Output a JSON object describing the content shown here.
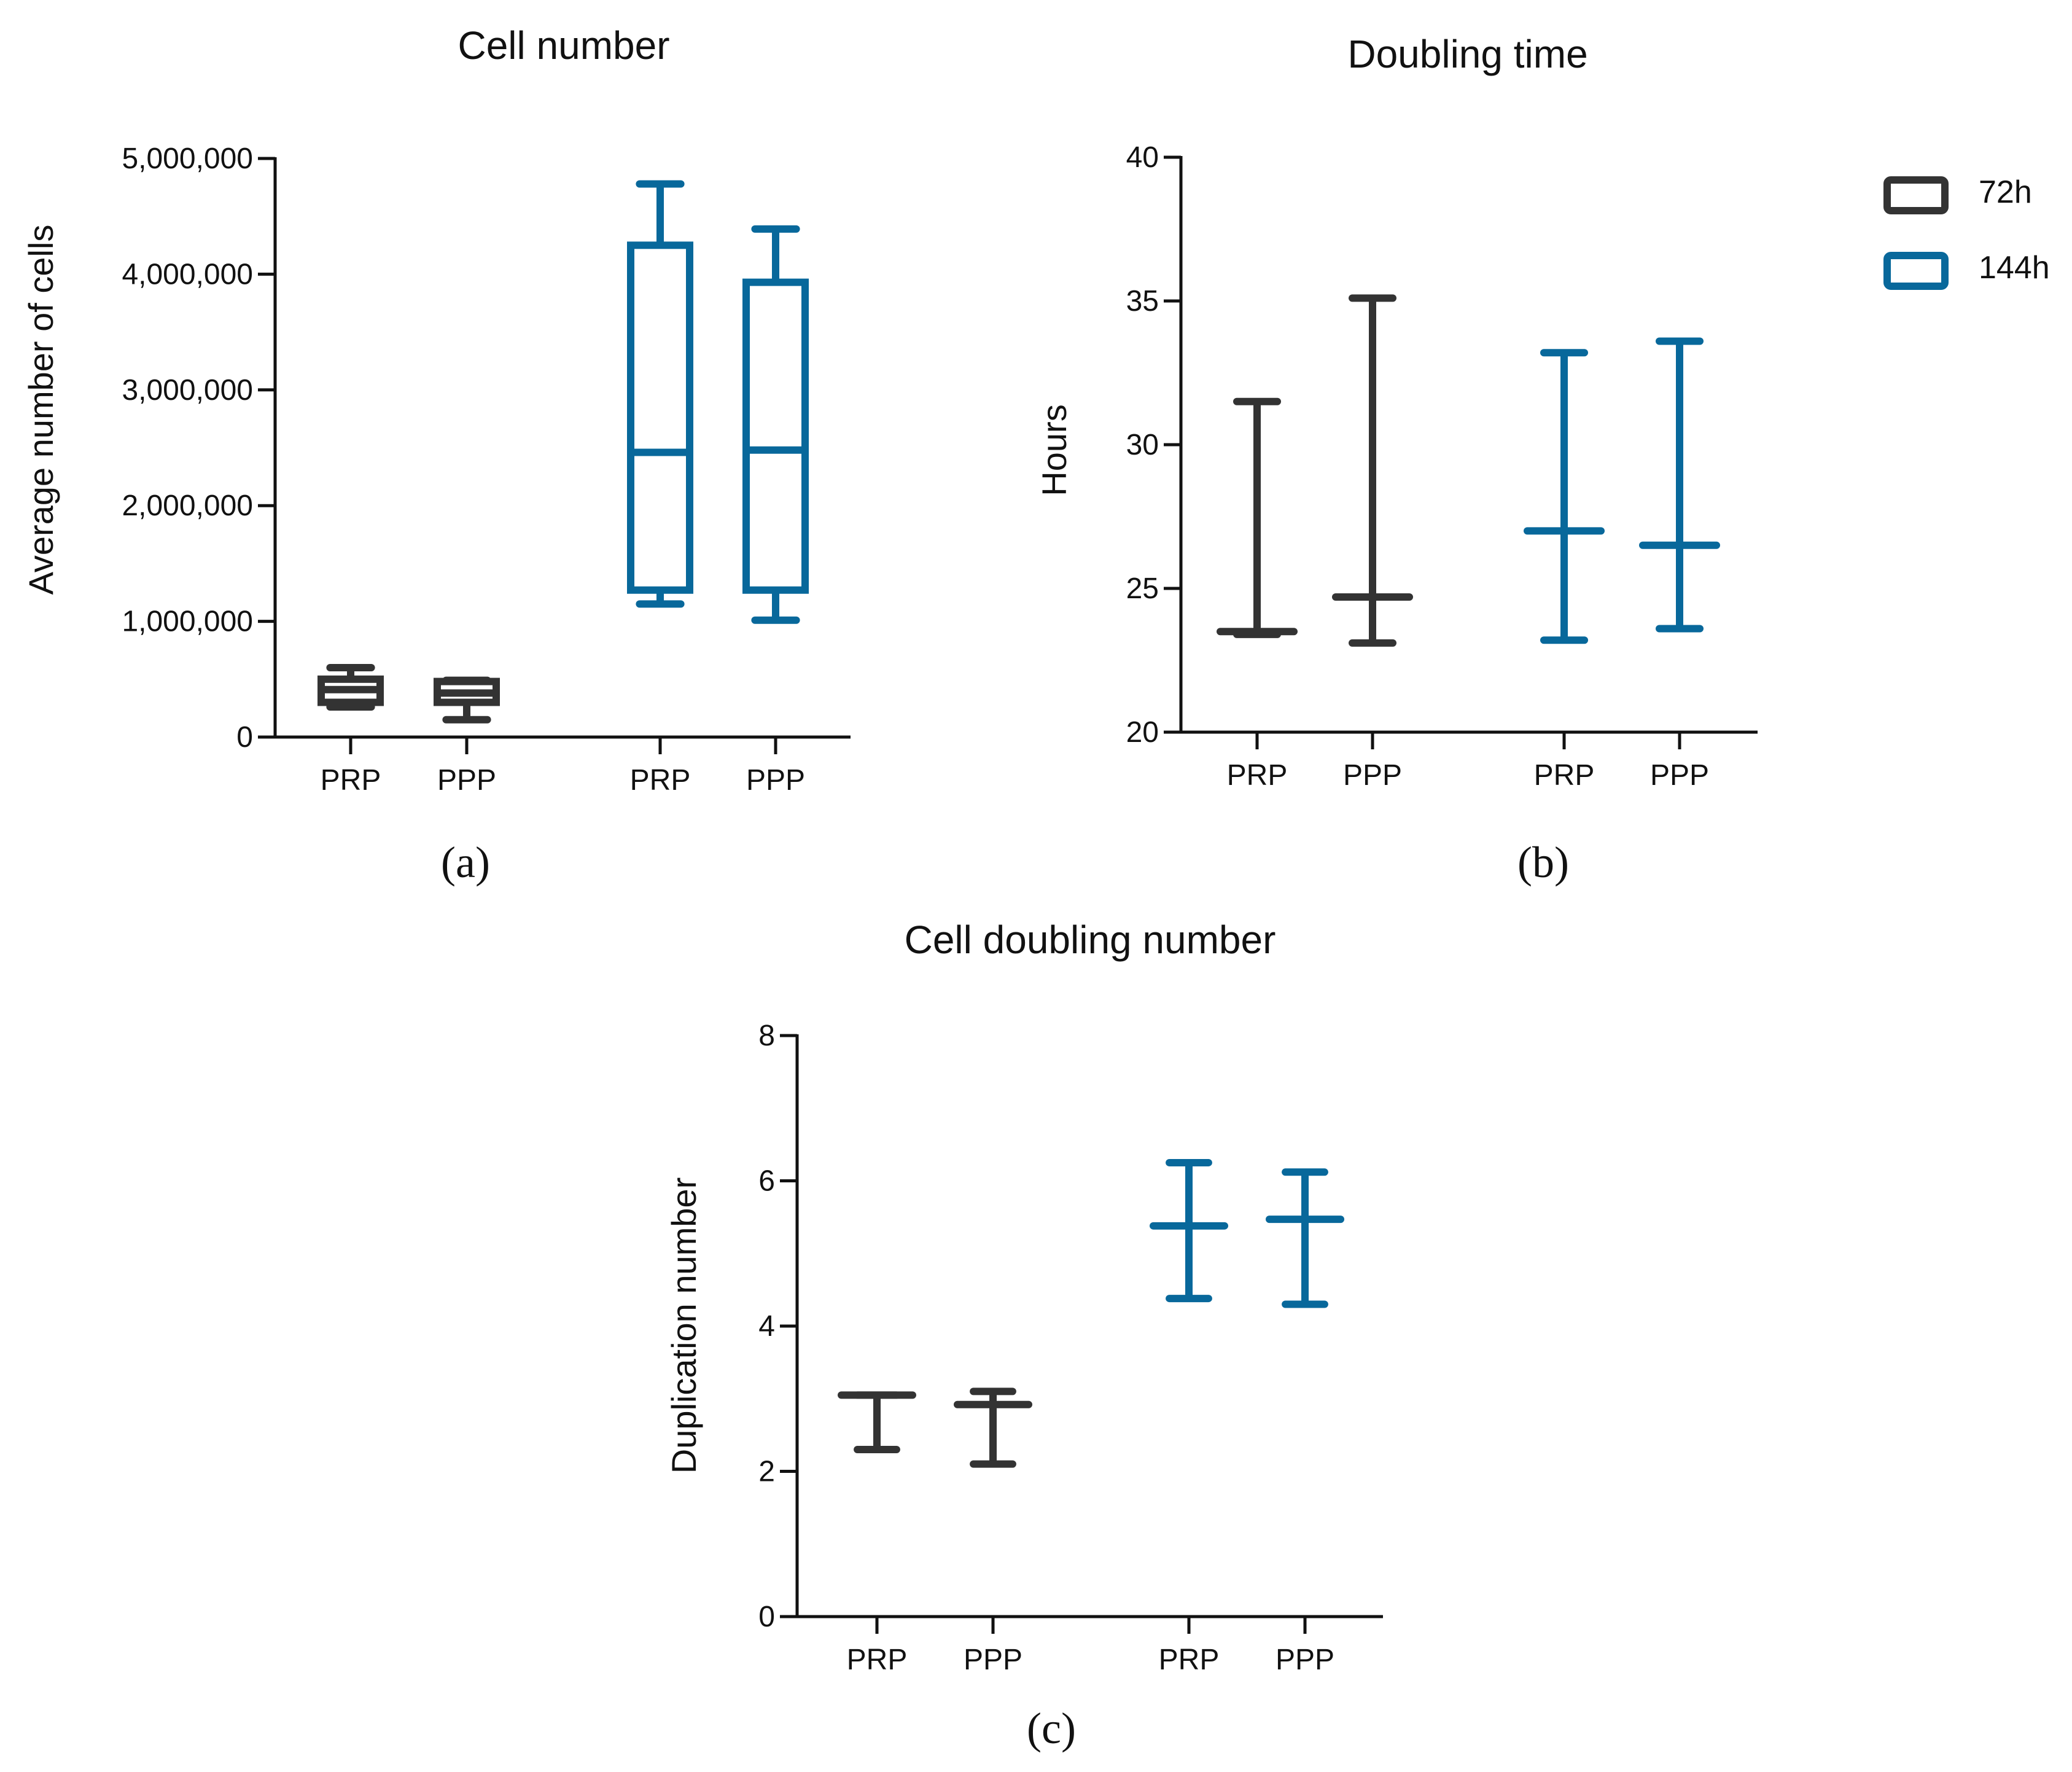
{
  "colors": {
    "h72": "#333333",
    "h144": "#08689b",
    "axis": "#111111"
  },
  "legend": [
    {
      "label": "72h",
      "color": "#333333"
    },
    {
      "label": "144h",
      "color": "#08689b"
    }
  ],
  "chart_data": [
    {
      "type": "box",
      "panel_label": "(a)",
      "title": "Cell number",
      "xlabel": "",
      "ylabel": "Average number of cells",
      "ylim": [
        0,
        5000000
      ],
      "yticks": [
        0,
        1000000,
        2000000,
        3000000,
        4000000,
        5000000
      ],
      "ytick_labels": [
        "0",
        "1,000,000",
        "2,000,000",
        "3,000,000",
        "4,000,000",
        "5,000,000"
      ],
      "categories": [
        "PRP",
        "PPP",
        "PRP",
        "PPP"
      ],
      "groups": [
        "72h",
        "72h",
        "144h",
        "144h"
      ],
      "boxes": [
        {
          "min": 260000,
          "q1": 300000,
          "median": 410000,
          "q3": 500000,
          "max": 600000
        },
        {
          "min": 150000,
          "q1": 300000,
          "median": 380000,
          "q3": 480000,
          "max": 490000
        },
        {
          "min": 1150000,
          "q1": 1270000,
          "median": 2460000,
          "q3": 4250000,
          "max": 4780000
        },
        {
          "min": 1010000,
          "q1": 1270000,
          "median": 2480000,
          "q3": 3930000,
          "max": 4390000
        }
      ]
    },
    {
      "type": "errorbar",
      "panel_label": "(b)",
      "title": "Doubling time",
      "xlabel": "",
      "ylabel": "Hours",
      "ylim": [
        20,
        40
      ],
      "yticks": [
        20,
        25,
        30,
        35,
        40
      ],
      "ytick_labels": [
        "20",
        "25",
        "30",
        "35",
        "40"
      ],
      "categories": [
        "PRP",
        "PPP",
        "PRP",
        "PPP"
      ],
      "groups": [
        "72h",
        "72h",
        "144h",
        "144h"
      ],
      "bars": [
        {
          "low": 23.4,
          "mid": 23.5,
          "high": 31.5
        },
        {
          "low": 23.1,
          "mid": 24.7,
          "high": 35.1
        },
        {
          "low": 23.2,
          "mid": 27.0,
          "high": 33.2
        },
        {
          "low": 23.6,
          "mid": 26.5,
          "high": 33.6
        }
      ]
    },
    {
      "type": "errorbar",
      "panel_label": "(c)",
      "title": "Cell doubling number",
      "xlabel": "",
      "ylabel": "Duplication number",
      "ylim": [
        0,
        8
      ],
      "yticks": [
        0,
        2,
        4,
        6,
        8
      ],
      "ytick_labels": [
        "0",
        "2",
        "4",
        "6",
        "8"
      ],
      "categories": [
        "PRP",
        "PPP",
        "PRP",
        "PPP"
      ],
      "groups": [
        "72h",
        "72h",
        "144h",
        "144h"
      ],
      "bars": [
        {
          "low": 2.3,
          "mid": 3.05,
          "high": 3.05
        },
        {
          "low": 2.1,
          "mid": 2.92,
          "high": 3.1
        },
        {
          "low": 4.38,
          "mid": 5.38,
          "high": 6.25
        },
        {
          "low": 4.3,
          "mid": 5.47,
          "high": 6.12
        }
      ]
    }
  ]
}
